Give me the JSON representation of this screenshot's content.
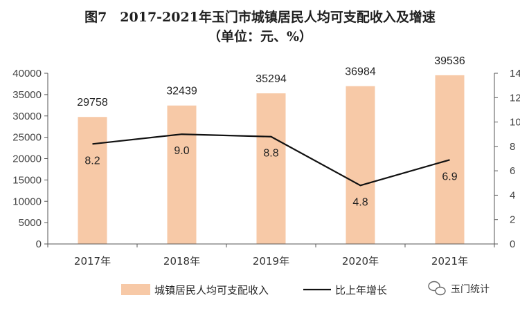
{
  "chart_data": {
    "type": "bar",
    "title": "图7　2017-2021年玉门市城镇居民人均可支配收入及增速",
    "subtitle": "（单位：元、%）",
    "categories": [
      "2017年",
      "2018年",
      "2019年",
      "2020年",
      "2021年"
    ],
    "series": [
      {
        "name": "城镇居民人均可支配收入",
        "type": "bar",
        "axis": "left",
        "values": [
          29758,
          32439,
          35294,
          36984,
          39536
        ],
        "labels": [
          "29758",
          "32439",
          "35294",
          "36984",
          "39536"
        ],
        "color": "#f7c9a7"
      },
      {
        "name": "比上年增长",
        "type": "line",
        "axis": "right",
        "values": [
          8.2,
          9.0,
          8.8,
          4.8,
          6.9
        ],
        "labels": [
          "8.2",
          "9.0",
          "8.8",
          "4.8",
          "6.9"
        ],
        "color": "#111111"
      }
    ],
    "y_left": {
      "min": 0,
      "max": 40000,
      "step": 5000,
      "ticks": [
        "0",
        "5000",
        "10000",
        "15000",
        "20000",
        "25000",
        "30000",
        "35000",
        "40000"
      ]
    },
    "y_right": {
      "min": 0,
      "max": 14,
      "step": 2,
      "ticks": [
        "0",
        "2",
        "4",
        "6",
        "8",
        "10",
        "12",
        "14"
      ]
    },
    "grid": false,
    "legend_position": "bottom"
  },
  "watermark": {
    "text": "玉门统计",
    "icon": "wechat-icon"
  }
}
